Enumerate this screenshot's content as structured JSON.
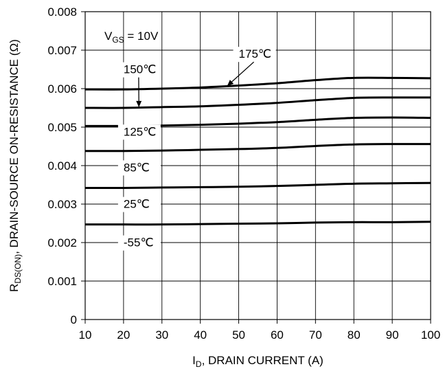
{
  "chart_data": {
    "type": "line",
    "xlabel_main": "I",
    "xlabel_sub": "D",
    "xlabel_rest": ", DRAIN CURRENT (A)",
    "ylabel_main": "R",
    "ylabel_sub": "DS(ON)",
    "ylabel_rest": ",  DRAIN-SOURCE ON-RESISTANCE (Ω)",
    "xlim": [
      10,
      100
    ],
    "ylim": [
      0,
      0.008
    ],
    "x_ticks": [
      "10",
      "20",
      "30",
      "40",
      "50",
      "60",
      "70",
      "80",
      "90",
      "100"
    ],
    "y_ticks": [
      "0",
      "0.001",
      "0.002",
      "0.003",
      "0.004",
      "0.005",
      "0.006",
      "0.007",
      "0.008"
    ],
    "grid": true,
    "vgs_label_main": "V",
    "vgs_label_sub": "GS",
    "vgs_label_rest": " = 10V",
    "x": [
      10,
      20,
      30,
      40,
      50,
      60,
      70,
      80,
      90,
      100
    ],
    "series": [
      {
        "name": "175℃",
        "values": [
          0.00598,
          0.00598,
          0.006,
          0.00603,
          0.00608,
          0.00614,
          0.00622,
          0.00628,
          0.00628,
          0.00627
        ]
      },
      {
        "name": "150℃",
        "values": [
          0.0055,
          0.0055,
          0.00552,
          0.00554,
          0.00558,
          0.00563,
          0.0057,
          0.00576,
          0.00577,
          0.00577
        ]
      },
      {
        "name": "125℃",
        "values": [
          0.00503,
          0.00503,
          0.00504,
          0.00506,
          0.00509,
          0.00513,
          0.00519,
          0.00524,
          0.00525,
          0.00524
        ]
      },
      {
        "name": "85℃",
        "values": [
          0.00438,
          0.00438,
          0.00439,
          0.00441,
          0.00443,
          0.00446,
          0.00451,
          0.00455,
          0.00456,
          0.00456
        ]
      },
      {
        "name": "25℃",
        "values": [
          0.00342,
          0.00342,
          0.00343,
          0.00344,
          0.00345,
          0.00347,
          0.0035,
          0.00353,
          0.00354,
          0.00355
        ]
      },
      {
        "name": "-55℃",
        "values": [
          0.00247,
          0.00247,
          0.00247,
          0.00248,
          0.00249,
          0.0025,
          0.00252,
          0.00253,
          0.00253,
          0.00254
        ]
      }
    ],
    "annotations": [
      {
        "text": "175℃",
        "x": 50,
        "y": 0.0068,
        "arrow_to": [
          47,
          0.00607
        ]
      },
      {
        "text": "150℃",
        "x": 20,
        "y": 0.0064,
        "arrow_to": [
          24,
          0.00552
        ]
      },
      {
        "text": "125℃",
        "x": 20,
        "y": 0.00478
      },
      {
        "text": "85℃",
        "x": 20,
        "y": 0.00385
      },
      {
        "text": "25℃",
        "x": 20,
        "y": 0.0029
      },
      {
        "text": "-55℃",
        "x": 20,
        "y": 0.0019
      }
    ]
  }
}
